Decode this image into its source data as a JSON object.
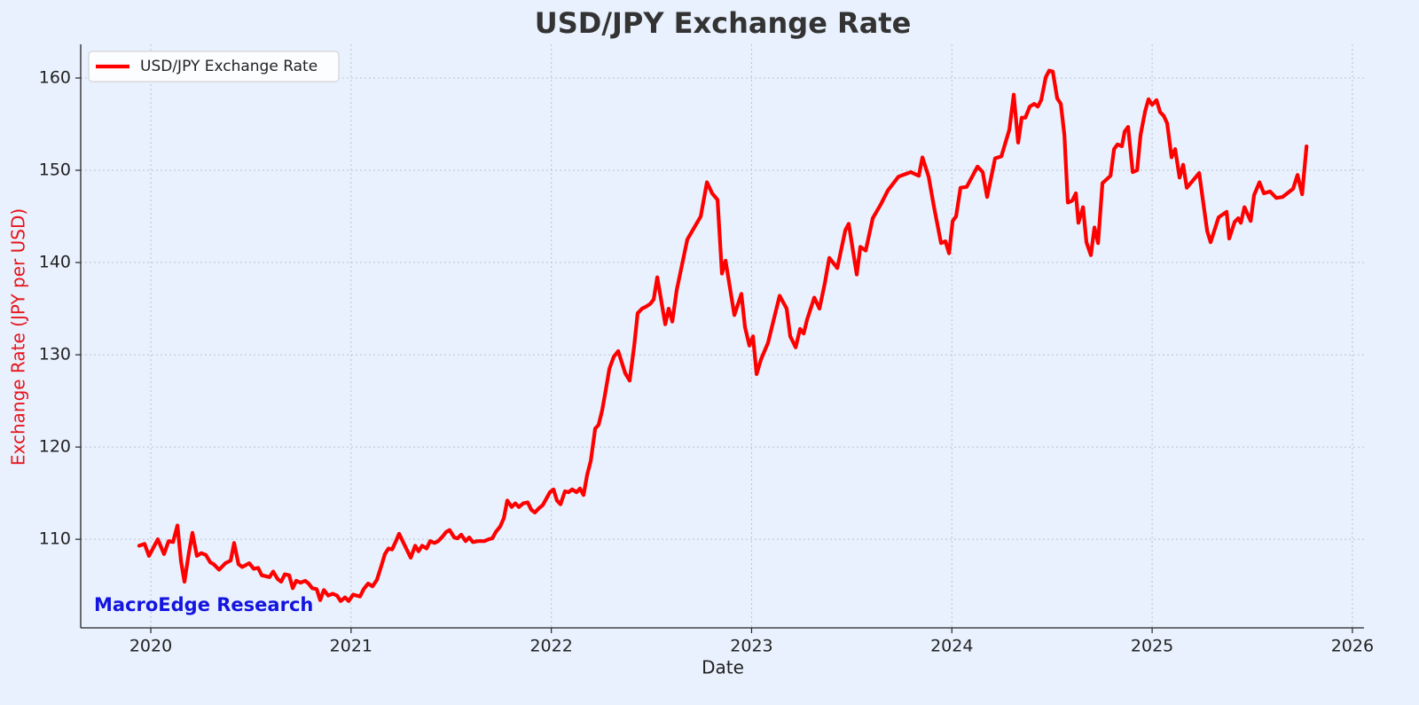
{
  "chart_data": {
    "type": "line",
    "title": "USD/JPY Exchange Rate",
    "xlabel": "Date",
    "ylabel": "Exchange Rate (JPY per USD)",
    "annotation": "MacroEdge Research",
    "legend": "upper left",
    "grid": true,
    "xlim": [
      2019.65,
      2026.058
    ],
    "xticks": [
      2020,
      2021,
      2022,
      2023,
      2024,
      2025,
      2026
    ],
    "ylim": [
      100.4,
      163.65
    ],
    "yticks": [
      110,
      120,
      130,
      140,
      150,
      160
    ],
    "x": [
      2019.942,
      2019.969,
      2019.991,
      2020.035,
      2020.066,
      2020.089,
      2020.111,
      2020.133,
      2020.151,
      2020.168,
      2020.19,
      2020.208,
      2020.23,
      2020.252,
      2020.275,
      2020.297,
      2020.314,
      2020.341,
      2020.372,
      2020.399,
      2020.416,
      2020.438,
      2020.456,
      2020.492,
      2020.514,
      2020.536,
      2020.554,
      2020.593,
      2020.611,
      2020.633,
      2020.651,
      2020.669,
      2020.691,
      2020.709,
      2020.726,
      2020.748,
      2020.771,
      2020.788,
      2020.806,
      2020.828,
      2020.846,
      2020.864,
      2020.886,
      2020.908,
      2020.93,
      2020.948,
      2020.97,
      2020.988,
      2021.01,
      2021.045,
      2021.063,
      2021.085,
      2021.107,
      2021.129,
      2021.151,
      2021.169,
      2021.187,
      2021.205,
      2021.222,
      2021.24,
      2021.262,
      2021.28,
      2021.298,
      2021.32,
      2021.337,
      2021.355,
      2021.377,
      2021.395,
      2021.417,
      2021.435,
      2021.457,
      2021.475,
      2021.492,
      2021.515,
      2021.532,
      2021.55,
      2021.572,
      2021.59,
      2021.608,
      2021.634,
      2021.665,
      2021.687,
      2021.705,
      2021.723,
      2021.745,
      2021.763,
      2021.78,
      2021.802,
      2021.82,
      2021.838,
      2021.86,
      2021.882,
      2021.9,
      2021.918,
      2021.94,
      2021.957,
      2021.975,
      2021.993,
      2022.011,
      2022.028,
      2022.046,
      2022.068,
      2022.086,
      2022.104,
      2022.126,
      2022.143,
      2022.161,
      2022.179,
      2022.197,
      2022.219,
      2022.236,
      2022.254,
      2022.272,
      2022.29,
      2022.312,
      2022.334,
      2022.347,
      2022.369,
      2022.391,
      2022.414,
      2022.431,
      2022.453,
      2022.471,
      2022.493,
      2022.511,
      2022.529,
      2022.569,
      2022.586,
      2022.604,
      2022.626,
      2022.679,
      2022.746,
      2022.777,
      2022.803,
      2022.83,
      2022.852,
      2022.87,
      2022.914,
      2022.949,
      2022.967,
      2022.989,
      2023.007,
      2023.025,
      2023.047,
      2023.082,
      2023.14,
      2023.175,
      2023.193,
      2023.22,
      2023.242,
      2023.26,
      2023.277,
      2023.313,
      2023.339,
      2023.366,
      2023.388,
      2023.428,
      2023.468,
      2023.485,
      2023.525,
      2023.543,
      2023.57,
      2023.605,
      2023.645,
      2023.68,
      2023.733,
      2023.795,
      2023.835,
      2023.853,
      2023.884,
      2023.911,
      2023.946,
      2023.968,
      2023.986,
      2024.004,
      2024.021,
      2024.043,
      2024.074,
      2024.128,
      2024.154,
      2024.176,
      2024.216,
      2024.247,
      2024.287,
      2024.309,
      2024.331,
      2024.349,
      2024.367,
      2024.389,
      2024.411,
      2024.429,
      2024.446,
      2024.469,
      2024.486,
      2024.504,
      2024.526,
      2024.544,
      2024.562,
      2024.579,
      2024.601,
      2024.619,
      2024.632,
      2024.655,
      2024.672,
      2024.694,
      2024.712,
      2024.73,
      2024.752,
      2024.792,
      2024.81,
      2024.827,
      2024.849,
      2024.863,
      2024.88,
      2024.903,
      2024.925,
      2024.942,
      2024.965,
      2024.982,
      2025.0,
      2025.022,
      2025.04,
      2025.058,
      2025.075,
      2025.097,
      2025.115,
      2025.137,
      2025.155,
      2025.173,
      2025.204,
      2025.235,
      2025.252,
      2025.275,
      2025.292,
      2025.332,
      2025.372,
      2025.385,
      2025.412,
      2025.43,
      2025.443,
      2025.461,
      2025.492,
      2025.509,
      2025.536,
      2025.558,
      2025.589,
      2025.62,
      2025.651,
      2025.704,
      2025.726,
      2025.749,
      2025.771
    ],
    "series": [
      {
        "name": "USD/JPY Exchange Rate",
        "color": "#ff0000",
        "values": [
          109.3,
          109.5,
          108.2,
          110.0,
          108.4,
          109.8,
          109.7,
          111.5,
          107.6,
          105.4,
          108.5,
          110.7,
          108.2,
          108.5,
          108.3,
          107.5,
          107.3,
          106.7,
          107.4,
          107.7,
          109.6,
          107.3,
          107.0,
          107.4,
          106.8,
          106.9,
          106.1,
          105.9,
          106.5,
          105.7,
          105.4,
          106.2,
          106.1,
          104.7,
          105.5,
          105.3,
          105.5,
          105.2,
          104.7,
          104.6,
          103.4,
          104.5,
          103.9,
          104.1,
          103.9,
          103.3,
          103.7,
          103.3,
          104.0,
          103.8,
          104.6,
          105.2,
          104.9,
          105.6,
          107.1,
          108.4,
          109.0,
          108.9,
          109.7,
          110.6,
          109.6,
          108.8,
          108.0,
          109.3,
          108.7,
          109.3,
          109.0,
          109.8,
          109.6,
          109.8,
          110.3,
          110.8,
          111.0,
          110.2,
          110.1,
          110.5,
          109.8,
          110.2,
          109.7,
          109.8,
          109.8,
          110.0,
          110.1,
          110.8,
          111.4,
          112.3,
          114.2,
          113.5,
          113.9,
          113.5,
          113.9,
          114.0,
          113.2,
          112.9,
          113.4,
          113.7,
          114.4,
          115.1,
          115.4,
          114.2,
          113.8,
          115.2,
          115.1,
          115.4,
          115.1,
          115.5,
          114.8,
          117.0,
          118.5,
          122.0,
          122.4,
          124.0,
          126.2,
          128.5,
          129.8,
          130.4,
          129.5,
          128.0,
          127.2,
          131.0,
          134.5,
          135.0,
          135.2,
          135.5,
          136.0,
          138.4,
          133.3,
          135.0,
          133.6,
          137.0,
          142.5,
          145.0,
          148.7,
          147.5,
          146.8,
          138.8,
          140.2,
          134.3,
          136.6,
          133.0,
          131.0,
          132.0,
          127.9,
          129.5,
          131.3,
          136.4,
          135.0,
          132.0,
          130.8,
          132.8,
          132.3,
          133.8,
          136.2,
          135.0,
          137.8,
          140.5,
          139.4,
          143.5,
          144.2,
          138.7,
          141.7,
          141.3,
          144.8,
          146.3,
          147.8,
          149.3,
          149.8,
          149.4,
          151.4,
          149.3,
          146.0,
          142.1,
          142.3,
          141.0,
          144.5,
          145.0,
          148.1,
          148.2,
          150.4,
          149.8,
          147.1,
          151.3,
          151.5,
          154.4,
          158.2,
          153.0,
          155.7,
          155.7,
          156.9,
          157.2,
          156.9,
          157.6,
          160.1,
          160.8,
          160.7,
          157.8,
          157.2,
          153.8,
          146.5,
          146.7,
          147.5,
          144.3,
          146.0,
          142.2,
          140.8,
          143.8,
          142.1,
          148.6,
          149.4,
          152.3,
          152.8,
          152.6,
          154.2,
          154.7,
          149.8,
          150.0,
          153.8,
          156.4,
          157.7,
          157.1,
          157.6,
          156.3,
          155.9,
          155.1,
          151.4,
          152.3,
          149.2,
          150.6,
          148.1,
          148.9,
          149.7,
          147.0,
          143.4,
          142.2,
          144.9,
          145.5,
          142.6,
          144.4,
          144.8,
          144.3,
          146.0,
          144.5,
          147.3,
          148.7,
          147.5,
          147.7,
          147.0,
          147.1,
          148.0,
          149.5,
          147.4,
          152.6
        ]
      }
    ]
  }
}
